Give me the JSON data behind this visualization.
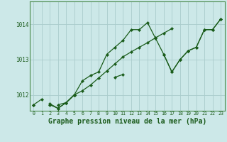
{
  "background_color": "#cce8e8",
  "grid_color": "#aacccc",
  "line_color": "#1a5c1a",
  "marker_color": "#1a5c1a",
  "xlabel": "Graphe pression niveau de la mer (hPa)",
  "xlabel_fontsize": 7,
  "ylabel_ticks": [
    1012,
    1013,
    1014
  ],
  "xlim": [
    -0.5,
    23.5
  ],
  "ylim": [
    1011.55,
    1014.65
  ],
  "hours": [
    0,
    1,
    2,
    3,
    4,
    5,
    6,
    7,
    8,
    9,
    10,
    11,
    12,
    13,
    14,
    15,
    16,
    17,
    18,
    19,
    20,
    21,
    22,
    23
  ],
  "series_main": [
    1011.72,
    null,
    1011.75,
    1011.62,
    1011.78,
    1012.0,
    1012.4,
    1012.55,
    1012.65,
    1013.15,
    1013.35,
    1013.55,
    1013.85,
    1013.85,
    1014.05,
    1013.6,
    1013.15,
    1012.65,
    1013.0,
    1013.25,
    1013.35,
    1013.85,
    1013.85,
    1014.15
  ],
  "series_lower": [
    null,
    null,
    null,
    null,
    null,
    1012.0,
    1012.12,
    1012.28,
    1012.48,
    1012.68,
    1012.88,
    1013.08,
    1013.22,
    1013.35,
    1013.48,
    1013.62,
    1013.75,
    1013.88,
    null,
    null,
    null,
    null,
    null,
    null
  ],
  "series_right": [
    null,
    null,
    null,
    null,
    null,
    null,
    null,
    null,
    null,
    null,
    null,
    null,
    null,
    null,
    null,
    null,
    1013.15,
    1012.65,
    1013.0,
    1013.25,
    1013.35,
    1013.85,
    1013.85,
    1014.15
  ],
  "series_short1": [
    1011.72,
    1011.88,
    null,
    1011.72,
    1011.78,
    1012.0,
    null,
    null,
    null,
    null,
    null,
    null,
    null,
    null,
    null,
    null,
    null,
    null,
    null,
    null,
    null,
    null,
    null,
    null
  ],
  "series_short2": [
    null,
    null,
    1011.72,
    1011.62,
    1011.78,
    1012.0,
    null,
    null,
    null,
    null,
    1012.5,
    1012.58,
    null,
    null,
    null,
    null,
    null,
    null,
    null,
    null,
    null,
    null,
    null,
    null
  ]
}
